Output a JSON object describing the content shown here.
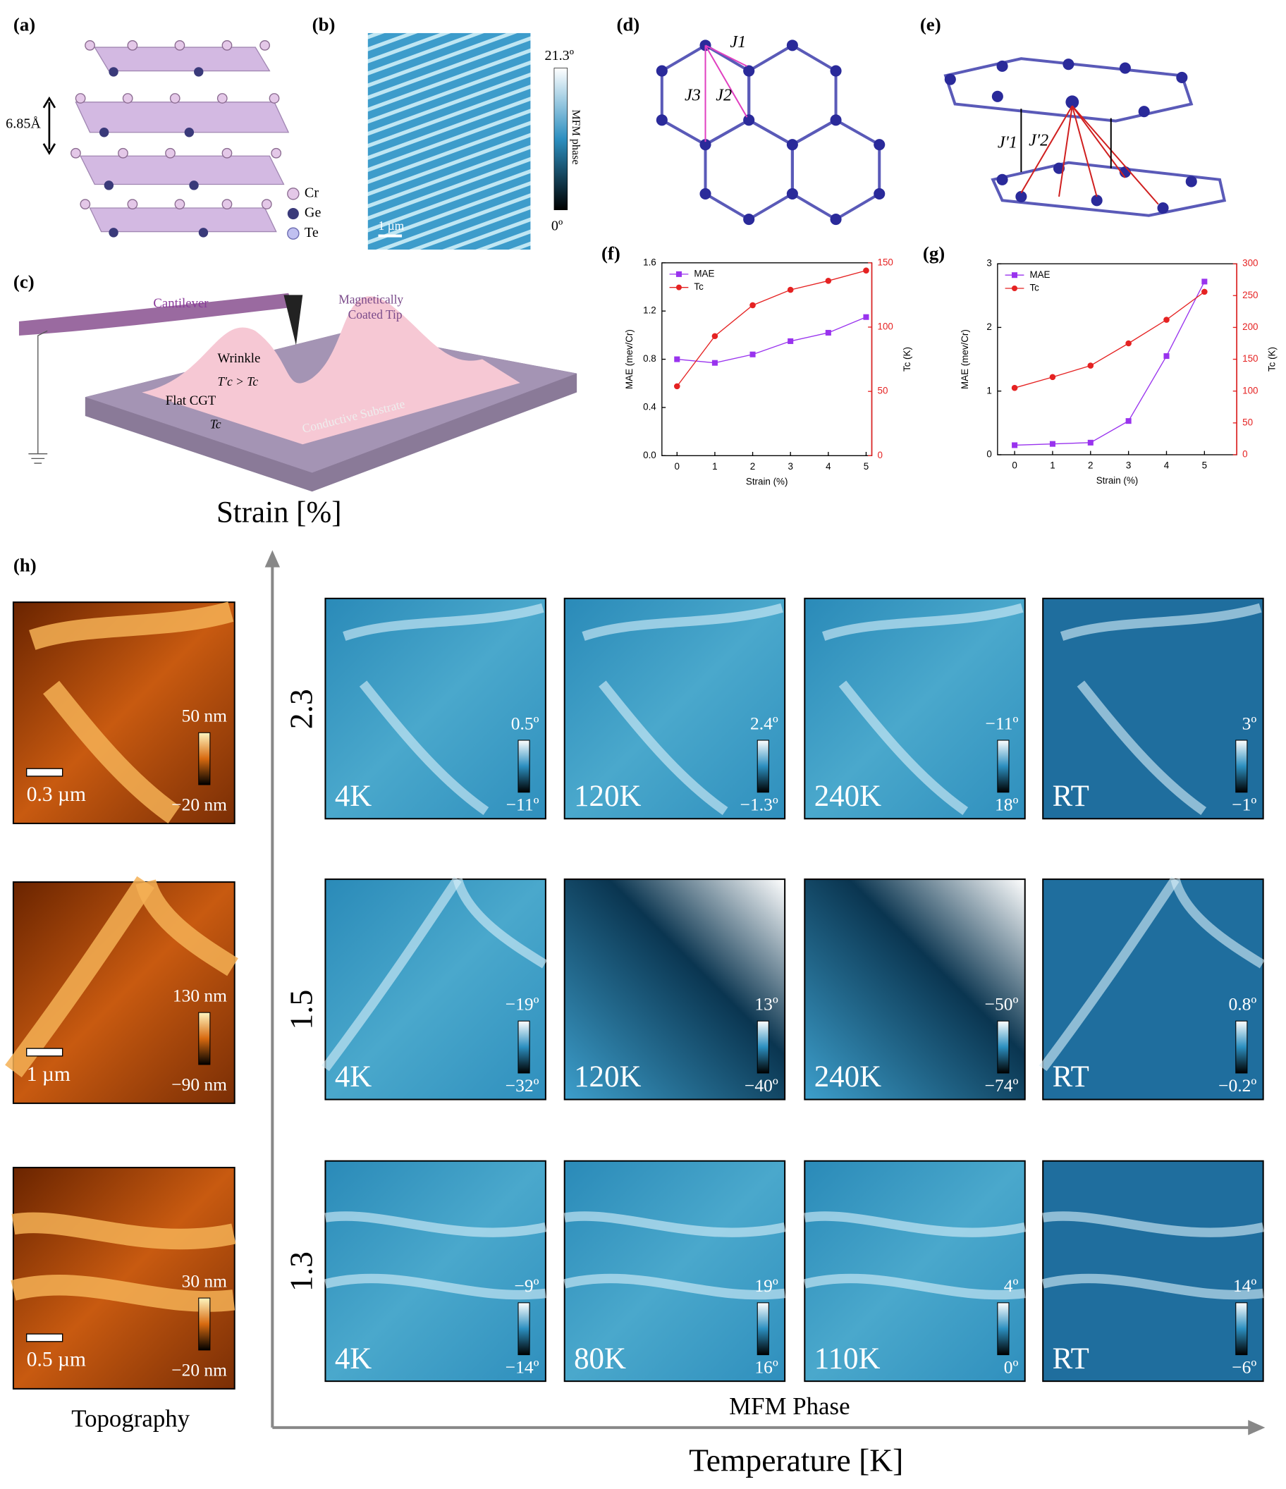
{
  "figure": {
    "panel_labels": [
      "(a)",
      "(b)",
      "(c)",
      "(d)",
      "(e)",
      "(f)",
      "(g)",
      "(h)"
    ],
    "a": {
      "spacing": "6.85Å",
      "legend": [
        "Cr",
        "Ge",
        "Te"
      ]
    },
    "b": {
      "colorbar_max": "21.3º",
      "colorbar_min": "0º",
      "colorbar_label": "MFM phase",
      "scale": "1 µm"
    },
    "c": {
      "cantilever": "Cantilever",
      "tip": [
        "Magnetically",
        "Coated Tip"
      ],
      "wrinkle": "Wrinkle",
      "strained": "T′c > Tc",
      "flat": "Flat CGT",
      "flat_tc": "Tc",
      "substrate": "Conductive Substrate"
    },
    "d": {
      "couplings": [
        "J1",
        "J2",
        "J3"
      ]
    },
    "e": {
      "couplings": [
        "J′1",
        "J′2"
      ]
    },
    "h": {
      "y_axis": "Strain [%]",
      "x_axis": "Temperature [K]",
      "topography_label": "Topography",
      "mfm_label": "MFM Phase",
      "rows": [
        {
          "strain": "2.3",
          "topography": {
            "max": "50 nm",
            "min": "−20 nm",
            "scale": "0.3 µm"
          },
          "mfm": [
            {
              "temp": "4K",
              "max": "0.5º",
              "min": "−11º"
            },
            {
              "temp": "120K",
              "max": "2.4º",
              "min": "−1.3º"
            },
            {
              "temp": "240K",
              "max": "−11º",
              "min": "18º"
            },
            {
              "temp": "RT",
              "max": "3º",
              "min": "−1º"
            }
          ]
        },
        {
          "strain": "1.5",
          "topography": {
            "max": "130 nm",
            "min": "−90 nm",
            "scale": "1 µm"
          },
          "mfm": [
            {
              "temp": "4K",
              "max": "−19º",
              "min": "−32º"
            },
            {
              "temp": "120K",
              "max": "13º",
              "min": "−40º"
            },
            {
              "temp": "240K",
              "max": "−50º",
              "min": "−74º"
            },
            {
              "temp": "RT",
              "max": "0.8º",
              "min": "−0.2º"
            }
          ]
        },
        {
          "strain": "1.3",
          "topography": {
            "max": "30 nm",
            "min": "−20 nm",
            "scale": "0.5 µm"
          },
          "mfm": [
            {
              "temp": "4K",
              "max": "−9º",
              "min": "−14º"
            },
            {
              "temp": "80K",
              "max": "19º",
              "min": "16º"
            },
            {
              "temp": "110K",
              "max": "4º",
              "min": "0º"
            },
            {
              "temp": "RT",
              "max": "14º",
              "min": "−6º"
            }
          ]
        }
      ]
    }
  },
  "chart_data": [
    {
      "type": "line",
      "xlabel": "Strain (%)",
      "ylabel": "MAE (mev/Cr)",
      "y2label": "Tc (K)",
      "x": [
        0,
        1,
        2,
        3,
        4,
        5
      ],
      "xlim": [
        -0.4,
        5.15
      ],
      "xticks": [
        0,
        1,
        2,
        3,
        4,
        5
      ],
      "ylim": [
        0,
        1.6
      ],
      "yticks": [
        {
          "value": 0,
          "label": "0.0"
        },
        0.4,
        0.8,
        1.2,
        1.6
      ],
      "y2lim": [
        0,
        150
      ],
      "y2ticks": [
        0,
        50,
        100,
        150
      ],
      "legend": "upper left",
      "series": [
        {
          "name": "MAE",
          "color": "#9933ee",
          "marker": "square",
          "values": [
            0.8,
            0.77,
            0.84,
            0.95,
            1.02,
            1.15
          ]
        },
        {
          "name": "Tc",
          "color": "#e52222",
          "marker": "circle",
          "axis": "y2",
          "values": [
            54,
            93,
            117,
            129,
            136,
            144
          ]
        }
      ]
    },
    {
      "type": "line",
      "xlabel": "Strain (%)",
      "ylabel": "MAE (mev/Cr)",
      "y2label": "Tc (K)",
      "x": [
        0,
        1,
        2,
        3,
        4,
        5
      ],
      "xlim": [
        -0.45,
        5.85
      ],
      "xticks": [
        0,
        1,
        2,
        3,
        4,
        5
      ],
      "ylim": [
        0,
        3
      ],
      "yticks": [
        0,
        1,
        2,
        3
      ],
      "y2lim": [
        0,
        300
      ],
      "y2ticks": [
        0,
        50,
        100,
        150,
        200,
        250,
        300
      ],
      "legend": "upper left",
      "series": [
        {
          "name": "MAE",
          "color": "#9933ee",
          "marker": "square",
          "values": [
            0.15,
            0.17,
            0.19,
            0.53,
            1.55,
            2.72
          ]
        },
        {
          "name": "Tc",
          "color": "#e52222",
          "marker": "circle",
          "axis": "y2",
          "values": [
            105,
            122,
            140,
            175,
            212,
            256
          ]
        }
      ]
    }
  ]
}
